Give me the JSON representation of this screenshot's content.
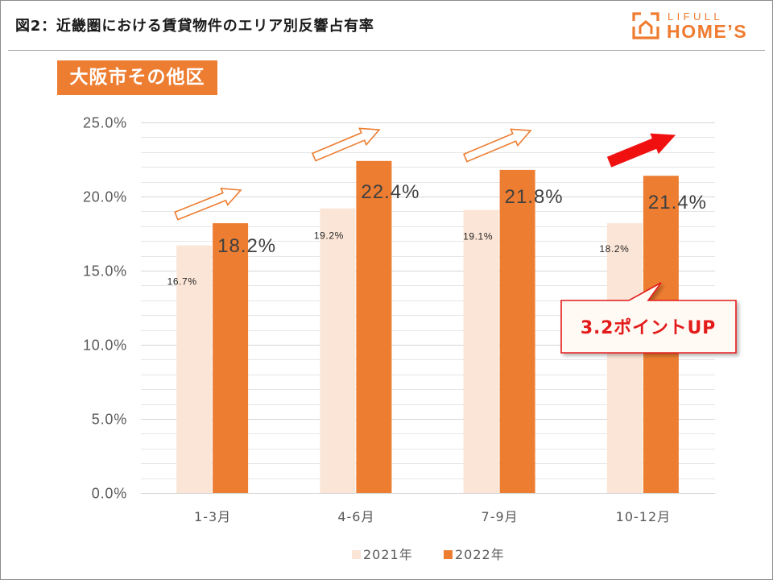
{
  "header": {
    "title": "図2：近畿圏における賃貸物件のエリア別反響占有率"
  },
  "logo": {
    "icon": "house-icon",
    "top_text": "LIFULL",
    "bottom_text": "HOME’S",
    "color": "#EF7B2F"
  },
  "badge": {
    "label": "大阪市その他区",
    "color": "#ED7D31"
  },
  "callout": {
    "text": "3.2ポイントUP",
    "color": "#E41B1B",
    "fill": "#FFFAF4"
  },
  "annotations": {
    "trend_arrows": [
      {
        "icon": "outline-up-arrow-icon",
        "color": "#ED7D31"
      },
      {
        "icon": "outline-up-arrow-icon",
        "color": "#ED7D31"
      },
      {
        "icon": "outline-up-arrow-icon",
        "color": "#ED7D31"
      },
      {
        "icon": "solid-up-arrow-icon",
        "color": "#F01010"
      }
    ]
  },
  "chart_data": {
    "type": "bar",
    "categories": [
      "1-3月",
      "4-6月",
      "7-9月",
      "10-12月"
    ],
    "series": [
      {
        "name": "2021年",
        "values": [
          16.7,
          19.2,
          19.1,
          18.2
        ],
        "data_labels": [
          "16.7%",
          "19.2%",
          "19.1%",
          "18.2%"
        ],
        "color": "#FBE5D6"
      },
      {
        "name": "2022年",
        "values": [
          18.2,
          22.4,
          21.8,
          21.4
        ],
        "data_labels": [
          "18.2%",
          "22.4%",
          "21.8%",
          "21.4%"
        ],
        "color": "#ED7D31"
      }
    ],
    "ylim": [
      0,
      25
    ],
    "yticks": [
      0,
      5,
      10,
      15,
      20,
      25
    ],
    "ytick_labels": [
      "0.0%",
      "5.0%",
      "10.0%",
      "15.0%",
      "20.0%",
      "25.0%"
    ],
    "minor_grid_step": 1,
    "grid": true,
    "legend": "bottom-center"
  }
}
